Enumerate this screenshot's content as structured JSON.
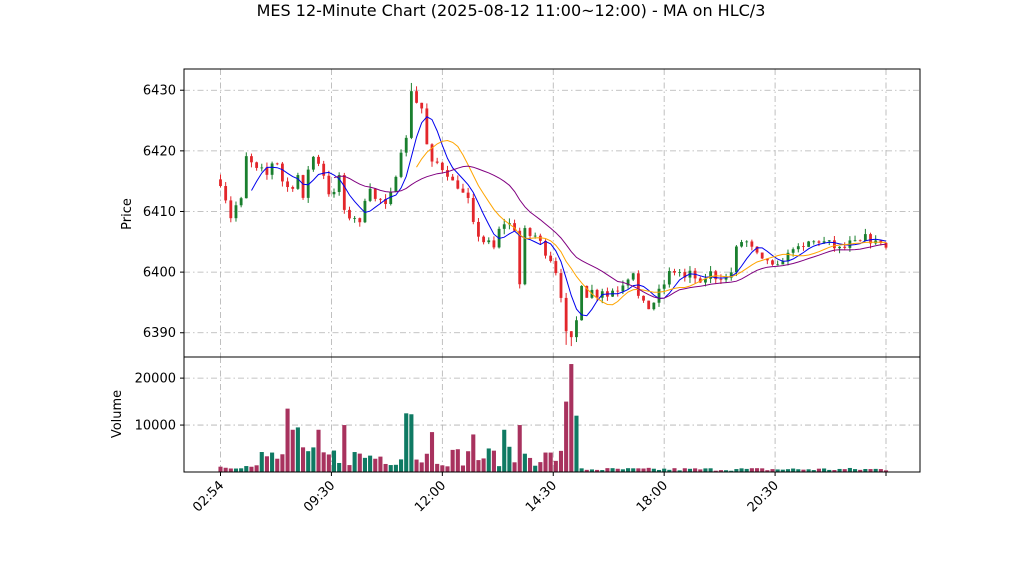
{
  "chart_data": {
    "type": "candlestick",
    "title": "MES 12-Minute Chart (2025-08-12 11:00~12:00) - MA on HLC/3",
    "price_panel": {
      "ylabel": "Price",
      "ylim": [
        6386,
        6433.5
      ],
      "yticks": [
        6390,
        6400,
        6410,
        6420,
        6430
      ],
      "grid": true
    },
    "volume_panel": {
      "ylabel": "Volume",
      "ylim": [
        0,
        24500
      ],
      "yticks": [
        10000,
        20000
      ],
      "grid": true
    },
    "x_range": [
      0,
      129
    ],
    "x_ticks": [
      {
        "index": 0,
        "label": "02:54"
      },
      {
        "index": 21.5,
        "label": "09:30"
      },
      {
        "index": 43,
        "label": "12:00"
      },
      {
        "index": 64.5,
        "label": "14:30"
      },
      {
        "index": 86,
        "label": "18:00"
      },
      {
        "index": 107.5,
        "label": "20:30"
      },
      {
        "index": 129,
        "label": ""
      }
    ],
    "colors": {
      "up": "#1a7f2e",
      "down": "#e3262b",
      "ma_fast": "#0000ee",
      "ma_mid": "#ffa500",
      "ma_slow": "#800080",
      "vol_up": "#0f7a63",
      "vol_down": "#a8325e",
      "grid": "#b0b0b0"
    },
    "ma_fast_start": 6,
    "ma_mid_start": 38,
    "ma_slow_start": 22,
    "close_path": [
      [
        0,
        6414.5
      ],
      [
        1,
        6412
      ],
      [
        2,
        6409
      ],
      [
        3,
        6411
      ],
      [
        4,
        6412
      ],
      [
        5,
        6419
      ],
      [
        6,
        6418
      ],
      [
        7,
        6417
      ],
      [
        8,
        6417
      ],
      [
        9,
        6416
      ],
      [
        10,
        6418
      ],
      [
        11,
        6418
      ],
      [
        12,
        6415
      ],
      [
        13,
        6414
      ],
      [
        14,
        6414
      ],
      [
        15,
        6416
      ],
      [
        16,
        6412
      ],
      [
        17,
        6417
      ],
      [
        18,
        6419
      ],
      [
        19,
        6418
      ],
      [
        20,
        6416
      ],
      [
        21,
        6413
      ],
      [
        22,
        6413
      ],
      [
        23,
        6416
      ],
      [
        24,
        6410
      ],
      [
        25,
        6409
      ],
      [
        26,
        6409
      ],
      [
        27,
        6408
      ],
      [
        28,
        6412
      ],
      [
        29,
        6414
      ],
      [
        30,
        6412
      ],
      [
        31,
        6412
      ],
      [
        32,
        6411
      ],
      [
        33,
        6413
      ],
      [
        34,
        6416
      ],
      [
        35,
        6420
      ],
      [
        36,
        6422
      ],
      [
        37,
        6430
      ],
      [
        38,
        6428
      ],
      [
        39,
        6427
      ],
      [
        40,
        6421
      ],
      [
        41,
        6418
      ],
      [
        42,
        6418
      ],
      [
        43,
        6417
      ],
      [
        44,
        6416
      ],
      [
        45,
        6415
      ],
      [
        46,
        6414
      ],
      [
        47,
        6413
      ],
      [
        48,
        6412
      ],
      [
        49,
        6408
      ],
      [
        50,
        6406
      ],
      [
        51,
        6405
      ],
      [
        52,
        6405
      ],
      [
        53,
        6404
      ],
      [
        54,
        6407
      ],
      [
        55,
        6408
      ],
      [
        56,
        6408
      ],
      [
        57,
        6407
      ],
      [
        58,
        6398
      ],
      [
        59,
        6407
      ],
      [
        60,
        6406
      ],
      [
        61,
        6406
      ],
      [
        62,
        6405
      ],
      [
        63,
        6403
      ],
      [
        64,
        6402
      ],
      [
        65,
        6400
      ],
      [
        66,
        6396
      ],
      [
        67,
        6390
      ],
      [
        68,
        6389
      ],
      [
        69,
        6392
      ],
      [
        70,
        6398
      ],
      [
        71,
        6396
      ],
      [
        72,
        6397
      ],
      [
        73,
        6396
      ],
      [
        74,
        6397
      ],
      [
        75,
        6396
      ],
      [
        76,
        6397
      ],
      [
        77,
        6397
      ],
      [
        78,
        6398
      ],
      [
        79,
        6399
      ],
      [
        80,
        6400
      ],
      [
        81,
        6396
      ],
      [
        82,
        6395
      ],
      [
        83,
        6394
      ],
      [
        84,
        6395
      ],
      [
        85,
        6397
      ],
      [
        86,
        6398
      ],
      [
        87,
        6400
      ],
      [
        88,
        6400
      ],
      [
        89,
        6400
      ],
      [
        90,
        6399
      ],
      [
        91,
        6400
      ],
      [
        92,
        6399
      ],
      [
        93,
        6398
      ],
      [
        94,
        6399
      ],
      [
        95,
        6400
      ],
      [
        96,
        6399
      ],
      [
        97,
        6399
      ],
      [
        98,
        6399
      ],
      [
        99,
        6400
      ],
      [
        100,
        6404
      ],
      [
        101,
        6405
      ],
      [
        102,
        6405
      ],
      [
        103,
        6404
      ],
      [
        104,
        6403
      ],
      [
        105,
        6402
      ],
      [
        106,
        6402
      ],
      [
        107,
        6401
      ],
      [
        108,
        6401
      ],
      [
        109,
        6402
      ],
      [
        110,
        6403
      ],
      [
        111,
        6404
      ],
      [
        112,
        6404
      ],
      [
        113,
        6404
      ],
      [
        114,
        6405
      ],
      [
        115,
        6405
      ],
      [
        116,
        6405
      ],
      [
        117,
        6405
      ],
      [
        118,
        6405
      ],
      [
        119,
        6404
      ],
      [
        120,
        6404
      ],
      [
        121,
        6404
      ],
      [
        122,
        6405
      ],
      [
        123,
        6405
      ],
      [
        124,
        6405
      ],
      [
        125,
        6406
      ],
      [
        126,
        6405
      ],
      [
        127,
        6405
      ],
      [
        128,
        6405
      ],
      [
        129,
        6404
      ]
    ],
    "extremes": [
      {
        "index": 37,
        "high": 6431.2
      },
      {
        "index": 38,
        "high": 6430.5
      },
      {
        "index": 58,
        "low": 6398
      },
      {
        "index": 67,
        "low": 6388
      },
      {
        "index": 68,
        "low": 6387.8
      }
    ],
    "volume_spikes": [
      {
        "index": 13,
        "value": 13500
      },
      {
        "index": 14,
        "value": 9000
      },
      {
        "index": 15,
        "value": 9500
      },
      {
        "index": 19,
        "value": 9000
      },
      {
        "index": 24,
        "value": 10000
      },
      {
        "index": 36,
        "value": 12500
      },
      {
        "index": 37,
        "value": 12300
      },
      {
        "index": 41,
        "value": 8500
      },
      {
        "index": 49,
        "value": 8000
      },
      {
        "index": 55,
        "value": 9000
      },
      {
        "index": 58,
        "value": 10000
      },
      {
        "index": 67,
        "value": 15000
      },
      {
        "index": 68,
        "value": 23000
      },
      {
        "index": 69,
        "value": 12000
      }
    ]
  }
}
